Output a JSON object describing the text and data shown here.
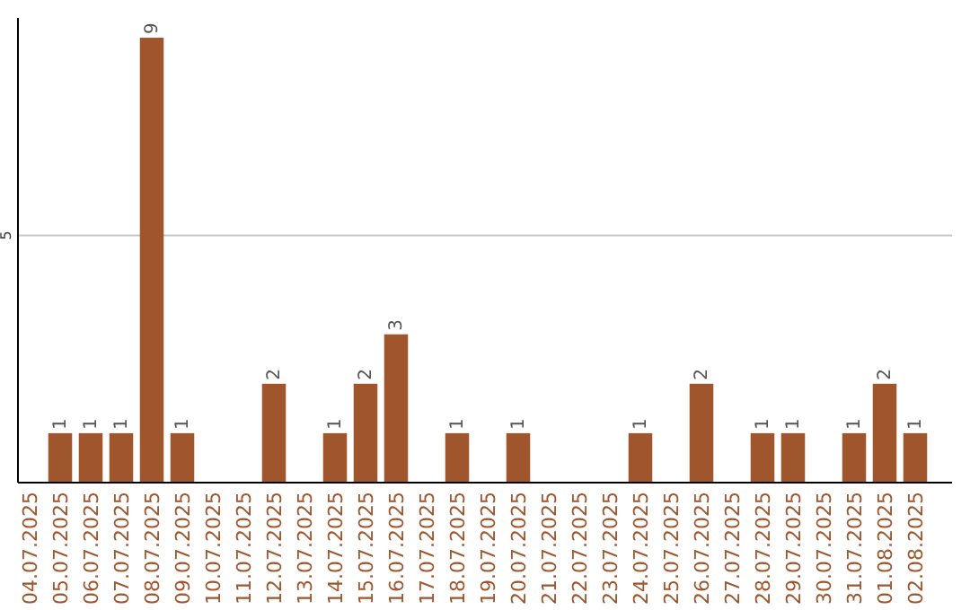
{
  "chart_data": {
    "type": "bar",
    "categories": [
      "04.07.2025",
      "05.07.2025",
      "06.07.2025",
      "07.07.2025",
      "08.07.2025",
      "09.07.2025",
      "10.07.2025",
      "11.07.2025",
      "12.07.2025",
      "13.07.2025",
      "14.07.2025",
      "15.07.2025",
      "16.07.2025",
      "17.07.2025",
      "18.07.2025",
      "19.07.2025",
      "20.07.2025",
      "21.07.2025",
      "22.07.2025",
      "23.07.2025",
      "24.07.2025",
      "25.07.2025",
      "26.07.2025",
      "27.07.2025",
      "28.07.2025",
      "29.07.2025",
      "30.07.2025",
      "31.07.2025",
      "01.08.2025",
      "02.08.2025"
    ],
    "values": [
      0,
      1,
      1,
      1,
      9,
      1,
      0,
      0,
      2,
      0,
      1,
      2,
      3,
      0,
      1,
      0,
      1,
      0,
      0,
      0,
      1,
      0,
      2,
      0,
      1,
      1,
      0,
      1,
      2,
      1
    ],
    "value_labels": [
      null,
      "1",
      "1",
      "1",
      "9",
      "1",
      null,
      null,
      "2",
      null,
      "1",
      "2",
      "3",
      null,
      "1",
      null,
      "1",
      null,
      null,
      null,
      "1",
      null,
      "2",
      null,
      "1",
      "1",
      null,
      "1",
      "2",
      "1"
    ],
    "color": "#a0562c",
    "ylim": [
      0,
      9.4
    ],
    "yticks": [
      5
    ],
    "grid": "y"
  }
}
